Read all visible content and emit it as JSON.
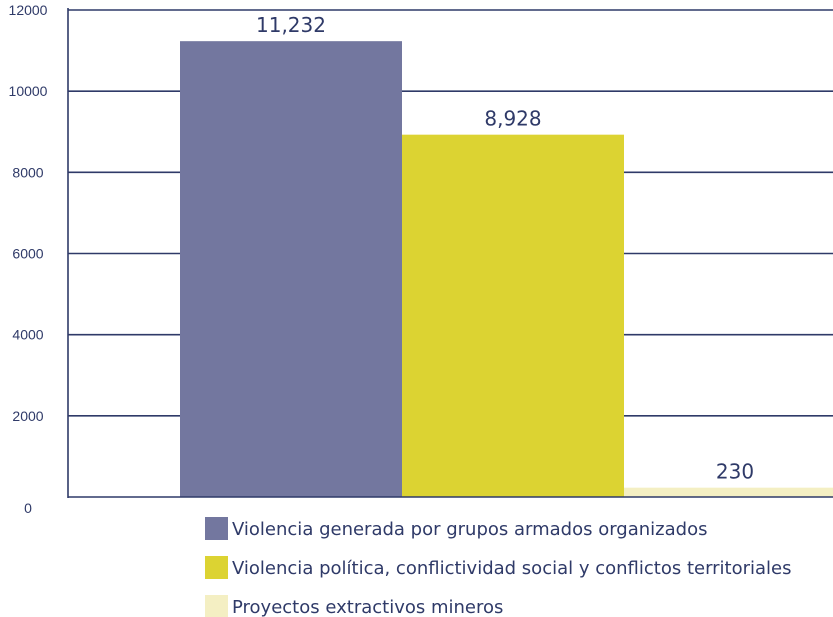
{
  "chart_data": {
    "type": "bar",
    "title": "",
    "xlabel": "",
    "ylabel": "",
    "ylim": [
      0,
      12000
    ],
    "yticks": [
      0,
      2000,
      4000,
      6000,
      8000,
      10000,
      12000
    ],
    "grid": true,
    "legend_position": "bottom",
    "categories": [
      "Violencia generada por grupos armados organizados",
      "Violencia política, conflictividad social y conflictos territoriales",
      "Proyectos extractivos mineros"
    ],
    "values": [
      11232,
      8928,
      230
    ],
    "data_labels": [
      "11,232",
      "8,928",
      "230"
    ],
    "colors": [
      "#73779f",
      "#dcd332",
      "#f4efc3"
    ],
    "axis_color": "#2f3a68",
    "text_color": "#2f3a68"
  }
}
